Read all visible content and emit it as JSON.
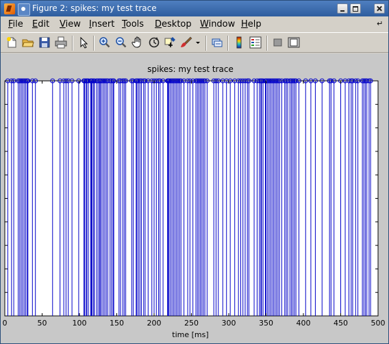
{
  "window": {
    "title": "Figure 2: spikes: my test trace",
    "controls": [
      "minimize",
      "maximize",
      "close"
    ]
  },
  "menubar": {
    "items": [
      "File",
      "Edit",
      "View",
      "Insert",
      "Tools",
      "Desktop",
      "Window",
      "Help"
    ],
    "overflow_icon": "dock-arrow-icon"
  },
  "toolbar": {
    "buttons": [
      "new-figure-icon",
      "open-file-icon",
      "save-figure-icon",
      "print-figure-icon",
      "edit-plot-arrow-icon",
      "zoom-in-icon",
      "zoom-out-icon",
      "pan-hand-icon",
      "rotate-3d-icon",
      "data-cursor-icon",
      "brush-icon",
      "brush-dropdown-icon",
      "link-plot-icon",
      "insert-colorbar-icon",
      "insert-legend-icon",
      "hide-plot-tools-icon",
      "show-plot-tools-icon"
    ]
  },
  "colors": {
    "stem": "#0000c8",
    "titlebar": "#3a6ea5",
    "figure_bg": "#c8c8c8",
    "axes_bg": "#ffffff"
  },
  "chart_data": {
    "type": "stem",
    "title": "spikes: my test trace",
    "xlabel": "time [ms]",
    "ylabel": "",
    "xlim": [
      0,
      500
    ],
    "ylim": [
      0,
      1
    ],
    "xticks": [
      0,
      50,
      100,
      150,
      200,
      250,
      300,
      350,
      400,
      450,
      500
    ],
    "x": [
      4,
      9,
      12,
      18,
      20,
      22,
      24,
      26,
      28,
      30,
      31,
      37,
      41,
      64,
      74,
      79,
      82,
      85,
      90,
      99,
      106,
      107,
      109,
      110,
      112,
      115,
      116,
      117,
      119,
      120,
      123,
      125,
      127,
      128,
      130,
      132,
      134,
      136,
      138,
      141,
      143,
      145,
      146,
      153,
      155,
      158,
      160,
      162,
      170,
      172,
      176,
      177,
      179,
      181,
      183,
      186,
      188,
      192,
      197,
      200,
      203,
      206,
      208,
      212,
      218,
      219,
      220,
      222,
      224,
      226,
      228,
      230,
      232,
      234,
      236,
      240,
      245,
      248,
      252,
      256,
      258,
      260,
      262,
      264,
      266,
      268,
      271,
      280,
      283,
      286,
      292,
      297,
      302,
      308,
      313,
      316,
      319,
      322,
      325,
      327,
      334,
      338,
      341,
      343,
      344,
      346,
      349,
      350,
      352,
      354,
      356,
      358,
      360,
      362,
      364,
      366,
      368,
      371,
      375,
      377,
      379,
      382,
      384,
      386,
      388,
      390,
      394,
      403,
      410,
      416,
      425,
      435,
      437,
      441,
      450,
      456,
      461,
      464,
      466,
      470,
      473,
      479,
      481,
      483,
      485,
      488,
      490
    ],
    "y": 1,
    "marker": "circle"
  }
}
